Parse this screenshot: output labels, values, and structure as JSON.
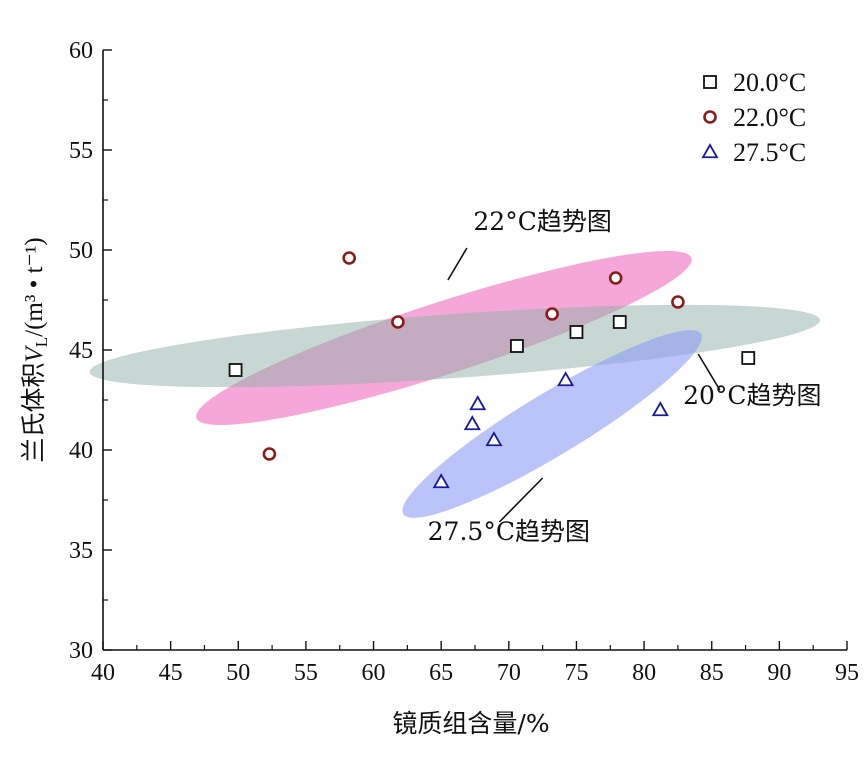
{
  "chart_data": {
    "type": "scatter",
    "xlabel": "镜质组含量/%",
    "ylabel_prefix": "兰氏体积",
    "ylabel_var": "V",
    "ylabel_sub": "L",
    "ylabel_unit": "/(m³ • t⁻¹)",
    "xlim": [
      40,
      95
    ],
    "ylim": [
      30,
      60
    ],
    "xticks": [
      40,
      45,
      50,
      55,
      60,
      65,
      70,
      75,
      80,
      85,
      90,
      95
    ],
    "yticks": [
      30,
      35,
      40,
      45,
      50,
      55,
      60
    ],
    "grid": false,
    "legend_position": "top-right",
    "series": [
      {
        "name": "20.0°C",
        "marker": "square",
        "color": "#111111",
        "points": [
          [
            49.8,
            44.0
          ],
          [
            70.6,
            45.2
          ],
          [
            75.0,
            45.9
          ],
          [
            78.2,
            46.4
          ],
          [
            87.7,
            44.6
          ]
        ]
      },
      {
        "name": "22.0°C",
        "marker": "circle",
        "color": "#8b1a1a",
        "points": [
          [
            52.3,
            39.8
          ],
          [
            58.2,
            49.6
          ],
          [
            61.8,
            46.4
          ],
          [
            73.2,
            46.8
          ],
          [
            77.9,
            48.6
          ],
          [
            82.5,
            47.4
          ]
        ]
      },
      {
        "name": "27.5°C",
        "marker": "triangle",
        "color": "#1a1a9c",
        "points": [
          [
            65.0,
            38.4
          ],
          [
            67.3,
            41.3
          ],
          [
            67.7,
            42.3
          ],
          [
            68.9,
            40.5
          ],
          [
            74.2,
            43.5
          ],
          [
            81.2,
            42.0
          ]
        ]
      }
    ],
    "trend_regions": [
      {
        "label": "22°C趋势图",
        "color": "#f06cc0",
        "opacity": 0.6,
        "center": [
          65.2,
          45.6
        ],
        "end": [
          83.5,
          49.6
        ],
        "semi_minor": 1.8
      },
      {
        "label": "20°C趋势图",
        "color": "#8fb0a8",
        "opacity": 0.5,
        "center": [
          66.0,
          45.2
        ],
        "end": [
          93.0,
          46.5
        ],
        "semi_minor": 1.6
      },
      {
        "label": "27.5°C趋势图",
        "color": "#8c9cf4",
        "opacity": 0.6,
        "center": [
          73.2,
          41.3
        ],
        "end": [
          84.2,
          45.8
        ],
        "semi_minor": 1.55
      }
    ],
    "annotations": [
      {
        "text": "22°C趋势图",
        "text_at": [
          72.5,
          51.0
        ],
        "arrow_from": [
          65.5,
          48.5
        ],
        "arrow_to": [
          66.9,
          50.1
        ]
      },
      {
        "text": "20°C趋势图",
        "text_at": [
          88.0,
          42.3
        ],
        "arrow_from": [
          84.0,
          44.8
        ],
        "arrow_to": [
          85.6,
          43.0
        ]
      },
      {
        "text": "27.5°C趋势图",
        "text_at": [
          70.0,
          35.5
        ],
        "arrow_from": [
          72.5,
          38.6
        ],
        "arrow_to": [
          69.3,
          36.4
        ]
      }
    ]
  }
}
